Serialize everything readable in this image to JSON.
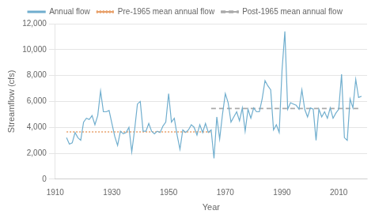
{
  "chart_data": {
    "type": "line",
    "xlabel": "Year",
    "ylabel": "Streamflow (cfs)",
    "xlim": [
      1910,
      2020
    ],
    "ylim": [
      0,
      12000
    ],
    "xticks": [
      1910,
      1930,
      1950,
      1970,
      1990,
      2010
    ],
    "yticks": [
      0,
      {
        "value": 2000,
        "label": "2,000"
      },
      {
        "value": 4000,
        "label": "4,000"
      },
      {
        "value": 6000,
        "label": "6,000"
      },
      {
        "value": 8000,
        "label": "8,000"
      },
      {
        "value": 10000,
        "label": "10,000"
      },
      {
        "value": 12000,
        "label": "12,000"
      }
    ],
    "grid": true,
    "legend": "top",
    "x": [
      1914,
      1915,
      1916,
      1917,
      1918,
      1919,
      1920,
      1921,
      1922,
      1923,
      1924,
      1925,
      1926,
      1927,
      1928,
      1929,
      1930,
      1931,
      1932,
      1933,
      1934,
      1935,
      1936,
      1937,
      1938,
      1939,
      1940,
      1941,
      1942,
      1943,
      1944,
      1945,
      1946,
      1947,
      1948,
      1949,
      1950,
      1951,
      1952,
      1953,
      1954,
      1955,
      1956,
      1957,
      1958,
      1959,
      1960,
      1961,
      1962,
      1963,
      1964,
      1965,
      1966,
      1967,
      1968,
      1969,
      1970,
      1971,
      1972,
      1973,
      1974,
      1975,
      1976,
      1977,
      1978,
      1979,
      1980,
      1981,
      1982,
      1983,
      1984,
      1985,
      1986,
      1987,
      1988,
      1989,
      1990,
      1991,
      1992,
      1993,
      1994,
      1995,
      1996,
      1997,
      1998,
      1999,
      2000,
      2001,
      2002,
      2003,
      2004,
      2005,
      2006,
      2007,
      2008,
      2009,
      2010,
      2011,
      2012,
      2013,
      2014,
      2015,
      2016,
      2017,
      2018
    ],
    "series": [
      {
        "name": "Annual flow",
        "color": "#70aece",
        "line_style": "solid",
        "values": [
          3200,
          2700,
          2800,
          3600,
          3200,
          3000,
          4400,
          4700,
          4600,
          4900,
          4200,
          4900,
          6800,
          5200,
          5200,
          5300,
          4300,
          3300,
          2600,
          3700,
          3500,
          3600,
          4000,
          2100,
          3800,
          5800,
          6000,
          3700,
          3700,
          4300,
          3700,
          3500,
          3700,
          3600,
          4100,
          4400,
          6600,
          4400,
          4700,
          3400,
          2300,
          3800,
          3600,
          3800,
          4200,
          4000,
          3400,
          4200,
          3600,
          4300,
          3600,
          3800,
          1600,
          4800,
          3100,
          5000,
          6600,
          5900,
          4400,
          4800,
          5200,
          4500,
          5500,
          3700,
          5400,
          4700,
          5500,
          5200,
          5200,
          6200,
          7600,
          7200,
          6900,
          3800,
          4200,
          3600,
          8400,
          11400,
          5400,
          5900,
          5800,
          5700,
          5400,
          6900,
          5400,
          4800,
          5500,
          5400,
          3000,
          5400,
          4800,
          5200,
          4700,
          5500,
          4700,
          5100,
          5400,
          8100,
          3200,
          3000,
          6200,
          5500,
          7700,
          6300,
          6400
        ]
      },
      {
        "name": "Pre-1965 mean annual flow",
        "color": "#e8a06a",
        "line_style": "dotted",
        "values": [
          3650,
          3650,
          3650,
          3650,
          3650,
          3650,
          3650,
          3650,
          3650,
          3650,
          3650,
          3650,
          3650,
          3650,
          3650,
          3650,
          3650,
          3650,
          3650,
          3650,
          3650,
          3650,
          3650,
          3650,
          3650,
          3650,
          3650,
          3650,
          3650,
          3650,
          3650,
          3650,
          3650,
          3650,
          3650,
          3650,
          3650,
          3650,
          3650,
          3650,
          3650,
          3650,
          3650,
          3650,
          3650,
          3650,
          3650,
          3650,
          3650,
          3650,
          3650,
          3650,
          null,
          null,
          null,
          null,
          null,
          null,
          null,
          null,
          null,
          null,
          null,
          null,
          null,
          null,
          null,
          null,
          null,
          null,
          null,
          null,
          null,
          null,
          null,
          null,
          null,
          null,
          null,
          null,
          null,
          null,
          null,
          null,
          null,
          null,
          null,
          null,
          null,
          null,
          null,
          null,
          null,
          null,
          null,
          null,
          null,
          null,
          null,
          null,
          null,
          null,
          null,
          null,
          null
        ]
      },
      {
        "name": "Post-1965 mean annual flow",
        "color": "#aaaaaa",
        "line_style": "dashed",
        "values": [
          null,
          null,
          null,
          null,
          null,
          null,
          null,
          null,
          null,
          null,
          null,
          null,
          null,
          null,
          null,
          null,
          null,
          null,
          null,
          null,
          null,
          null,
          null,
          null,
          null,
          null,
          null,
          null,
          null,
          null,
          null,
          null,
          null,
          null,
          null,
          null,
          null,
          null,
          null,
          null,
          null,
          null,
          null,
          null,
          null,
          null,
          null,
          null,
          null,
          null,
          null,
          5450,
          5450,
          5450,
          5450,
          5450,
          5450,
          5450,
          5450,
          5450,
          5450,
          5450,
          5450,
          5450,
          5450,
          5450,
          5450,
          5450,
          5450,
          5450,
          5450,
          5450,
          5450,
          5450,
          5450,
          5450,
          5450,
          5450,
          5450,
          5450,
          5450,
          5450,
          5450,
          5450,
          5450,
          5450,
          5450,
          5450,
          5450,
          5450,
          5450,
          5450,
          5450,
          5450,
          5450,
          5450,
          5450,
          5450,
          5450,
          5450,
          5450,
          5450,
          5450,
          5450,
          5450
        ]
      }
    ]
  }
}
